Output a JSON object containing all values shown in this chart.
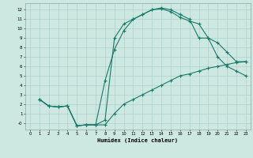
{
  "xlabel": "Humidex (Indice chaleur)",
  "background_color": "#cce8e0",
  "grid_color": "#a8ccC4",
  "line_color": "#1a7a6a",
  "xlim": [
    -0.5,
    23.5
  ],
  "ylim": [
    -0.7,
    12.7
  ],
  "xticks": [
    0,
    1,
    2,
    3,
    4,
    5,
    6,
    7,
    8,
    9,
    10,
    11,
    12,
    13,
    14,
    15,
    16,
    17,
    18,
    19,
    20,
    21,
    22,
    23
  ],
  "yticks": [
    0,
    1,
    2,
    3,
    4,
    5,
    6,
    7,
    8,
    9,
    10,
    11,
    12
  ],
  "ytick_labels": [
    "-0",
    "1",
    "2",
    "3",
    "4",
    "5",
    "6",
    "7",
    "8",
    "9",
    "10",
    "11",
    "12"
  ],
  "curve1_x": [
    1,
    2,
    3,
    4,
    5,
    6,
    7,
    8,
    9,
    10,
    11,
    12,
    13,
    14,
    15,
    16,
    17,
    18,
    19,
    20,
    21,
    22,
    23
  ],
  "curve1_y": [
    2.5,
    1.8,
    1.7,
    1.8,
    -0.3,
    -0.2,
    -0.2,
    0.3,
    9.0,
    10.5,
    11.0,
    11.5,
    12.0,
    12.2,
    12.0,
    11.5,
    11.0,
    9.0,
    9.0,
    8.5,
    7.5,
    6.5,
    6.5
  ],
  "curve2_x": [
    1,
    2,
    3,
    4,
    5,
    6,
    7,
    8,
    9,
    10,
    11,
    12,
    13,
    14,
    15,
    16,
    17,
    18,
    19,
    20,
    21,
    22,
    23
  ],
  "curve2_y": [
    2.5,
    1.8,
    1.7,
    1.8,
    -0.3,
    -0.2,
    -0.2,
    4.5,
    7.8,
    9.8,
    11.0,
    11.5,
    12.0,
    12.1,
    11.8,
    11.2,
    10.8,
    10.5,
    9.0,
    7.0,
    6.0,
    5.5,
    5.0
  ],
  "curve3_x": [
    1,
    2,
    3,
    4,
    5,
    6,
    7,
    8,
    9,
    10,
    11,
    12,
    13,
    14,
    15,
    16,
    17,
    18,
    19,
    20,
    21,
    22,
    23
  ],
  "curve3_y": [
    2.5,
    1.8,
    1.7,
    1.8,
    -0.3,
    -0.2,
    -0.2,
    -0.2,
    1.0,
    2.0,
    2.5,
    3.0,
    3.5,
    4.0,
    4.5,
    5.0,
    5.2,
    5.5,
    5.8,
    6.0,
    6.2,
    6.4,
    6.5
  ]
}
